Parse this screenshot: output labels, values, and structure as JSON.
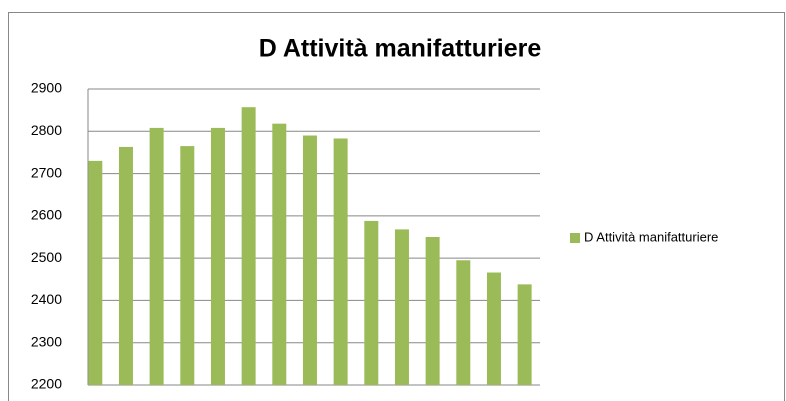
{
  "chart_data": {
    "type": "bar",
    "title": "D Attività manifatturiere",
    "categories": [
      null,
      null,
      null,
      null,
      null,
      null,
      null,
      null,
      null,
      null,
      null,
      null,
      null,
      null,
      null
    ],
    "series": [
      {
        "name": "D Attività manifatturiere",
        "color": "#9bbb59",
        "values": [
          2730,
          2763,
          2808,
          2765,
          2808,
          2857,
          2818,
          2790,
          2783,
          2588,
          2568,
          2550,
          2495,
          2466,
          2438
        ]
      }
    ],
    "ylim": [
      2200,
      2900
    ],
    "yticks": [
      2200,
      2300,
      2400,
      2500,
      2600,
      2700,
      2800,
      2900
    ],
    "grid": true,
    "legend": "right"
  }
}
